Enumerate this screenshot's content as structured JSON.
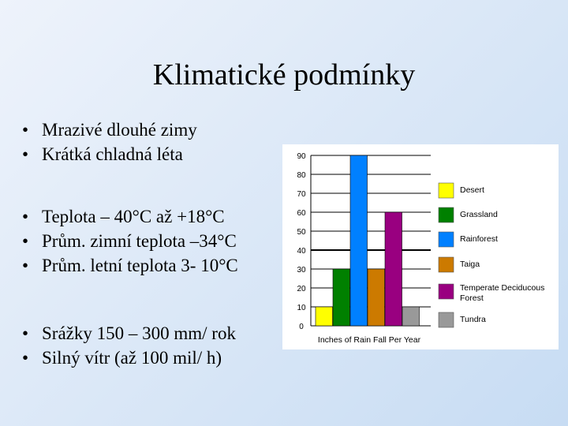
{
  "title": "Klimatické podmínky",
  "bullet_groups": [
    [
      "Mrazivé dlouhé zimy",
      "Krátká chladná léta"
    ],
    [
      "Teplota – 40°C až +18°C",
      "Prům. zimní teplota –34°C",
      "Prům. letní teplota 3- 10°C"
    ],
    [
      "Srážky 150 – 300 mm/ rok",
      "Silný vítr (až 100 mil/ h)"
    ]
  ],
  "chart_data": {
    "type": "bar",
    "title": "",
    "xlabel": "Inches of Rain Fall Per Year",
    "ylabel": "",
    "ylim": [
      0,
      90
    ],
    "yticks": [
      0,
      10,
      20,
      30,
      40,
      50,
      60,
      70,
      80,
      90
    ],
    "grid": true,
    "legend": "right",
    "categories": [
      "Desert",
      "Grassland",
      "Rainforest",
      "Taiga",
      "Temperate Deciduous Forest",
      "Tundra"
    ],
    "values": [
      10,
      30,
      90,
      30,
      60,
      10
    ],
    "colors": [
      "#ffff00",
      "#008000",
      "#0080ff",
      "#cc7a00",
      "#990080",
      "#999999"
    ]
  }
}
